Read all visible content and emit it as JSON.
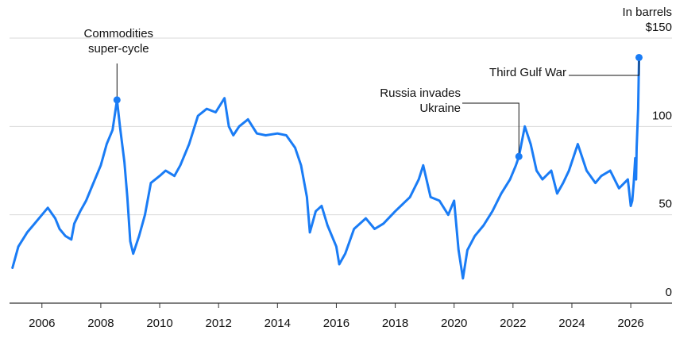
{
  "chart_data": {
    "type": "line",
    "unit_label": "In barrels",
    "x_ticks": [
      2006,
      2008,
      2010,
      2012,
      2014,
      2016,
      2018,
      2020,
      2022,
      2024,
      2026
    ],
    "y_ticks": [
      {
        "value": 0,
        "label": "0"
      },
      {
        "value": 50,
        "label": "50"
      },
      {
        "value": 100,
        "label": "100"
      },
      {
        "value": 150,
        "label": "$150"
      }
    ],
    "xlim": [
      2004.9,
      2027.4
    ],
    "ylim": [
      0,
      150
    ],
    "grid": "horizontal",
    "line_color": "#1a7cf5",
    "series": [
      {
        "x": [
          2005.0,
          2005.2,
          2005.5,
          2005.7,
          2006.0,
          2006.2,
          2006.45,
          2006.6,
          2006.8,
          2007.0,
          2007.1,
          2007.3,
          2007.5,
          2007.7,
          2008.0,
          2008.2,
          2008.4,
          2008.55,
          2008.65,
          2008.8,
          2008.9,
          2009.0,
          2009.1,
          2009.3,
          2009.5,
          2009.7,
          2010.0,
          2010.2,
          2010.5,
          2010.7,
          2011.0,
          2011.3,
          2011.6,
          2011.9,
          2012.2,
          2012.35,
          2012.5,
          2012.7,
          2013.0,
          2013.3,
          2013.6,
          2014.0,
          2014.3,
          2014.6,
          2014.8,
          2015.0,
          2015.1,
          2015.3,
          2015.5,
          2015.7,
          2016.0,
          2016.1,
          2016.3,
          2016.6,
          2017.0,
          2017.3,
          2017.6,
          2018.0,
          2018.5,
          2018.8,
          2018.95,
          2019.2,
          2019.5,
          2019.8,
          2020.0,
          2020.15,
          2020.3,
          2020.45,
          2020.7,
          2021.0,
          2021.3,
          2021.6,
          2021.9,
          2022.1,
          2022.2,
          2022.4,
          2022.6,
          2022.8,
          2023.0,
          2023.3,
          2023.5,
          2023.7,
          2023.9,
          2024.2,
          2024.5,
          2024.8,
          2025.0,
          2025.3,
          2025.6,
          2025.9,
          2026.0,
          2026.05,
          2026.1,
          2026.15,
          2026.18,
          2026.2,
          2026.25,
          2026.28
        ],
        "y": [
          20,
          32,
          40,
          44,
          50,
          54,
          48,
          42,
          38,
          36,
          45,
          52,
          58,
          66,
          78,
          90,
          98,
          115,
          100,
          80,
          60,
          35,
          28,
          38,
          50,
          68,
          72,
          75,
          72,
          78,
          90,
          106,
          110,
          108,
          116,
          100,
          95,
          100,
          104,
          96,
          95,
          96,
          95,
          88,
          78,
          60,
          40,
          52,
          55,
          44,
          32,
          22,
          28,
          42,
          48,
          42,
          45,
          52,
          60,
          70,
          78,
          60,
          58,
          50,
          58,
          30,
          14,
          30,
          38,
          44,
          52,
          62,
          70,
          78,
          83,
          100,
          90,
          75,
          70,
          75,
          62,
          68,
          75,
          90,
          75,
          68,
          72,
          75,
          65,
          70,
          55,
          58,
          68,
          82,
          70,
          88,
          110,
          139
        ]
      }
    ],
    "annotations": [
      {
        "id": "commodities",
        "lines": [
          "Commodities",
          "super-cycle"
        ],
        "x": 2008.55,
        "y": 115
      },
      {
        "id": "russia",
        "lines": [
          "Russia invades",
          "Ukraine"
        ],
        "x": 2022.2,
        "y": 83
      },
      {
        "id": "gulf",
        "lines": [
          "Third Gulf War"
        ],
        "x": 2026.28,
        "y": 139
      }
    ]
  }
}
